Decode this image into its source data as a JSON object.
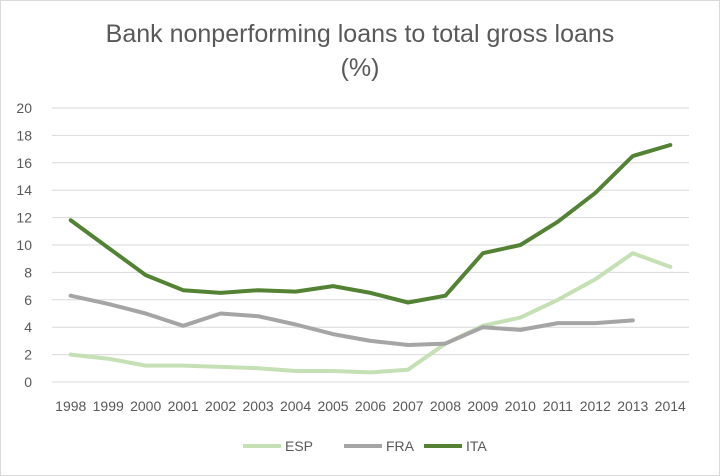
{
  "chart_data": {
    "type": "line",
    "title_line1": "Bank nonperforming loans to total gross loans",
    "title_line2": "(%)",
    "xlabel": "",
    "ylabel": "",
    "ylim": [
      0,
      20
    ],
    "yticks": [
      0,
      2,
      4,
      6,
      8,
      10,
      12,
      14,
      16,
      18,
      20
    ],
    "x": [
      "1998",
      "1999",
      "2000",
      "2001",
      "2002",
      "2003",
      "2004",
      "2005",
      "2006",
      "2007",
      "2008",
      "2009",
      "2010",
      "2011",
      "2012",
      "2013",
      "2014"
    ],
    "grid": true,
    "legend_position": "bottom",
    "series": [
      {
        "name": "ESP",
        "color": "#c5e0b4",
        "values": [
          2.0,
          1.7,
          1.2,
          1.2,
          1.1,
          1.0,
          0.8,
          0.8,
          0.7,
          0.9,
          2.8,
          4.1,
          4.7,
          6.0,
          7.5,
          9.4,
          8.4
        ]
      },
      {
        "name": "FRA",
        "color": "#a5a5a5",
        "values": [
          6.3,
          5.7,
          5.0,
          4.1,
          5.0,
          4.8,
          4.2,
          3.5,
          3.0,
          2.7,
          2.8,
          4.0,
          3.8,
          4.3,
          4.3,
          4.5,
          null
        ]
      },
      {
        "name": "ITA",
        "color": "#548235",
        "values": [
          11.8,
          9.8,
          7.8,
          6.7,
          6.5,
          6.7,
          6.6,
          7.0,
          6.5,
          5.8,
          6.3,
          9.4,
          10.0,
          11.7,
          13.8,
          16.5,
          17.3
        ]
      }
    ]
  }
}
